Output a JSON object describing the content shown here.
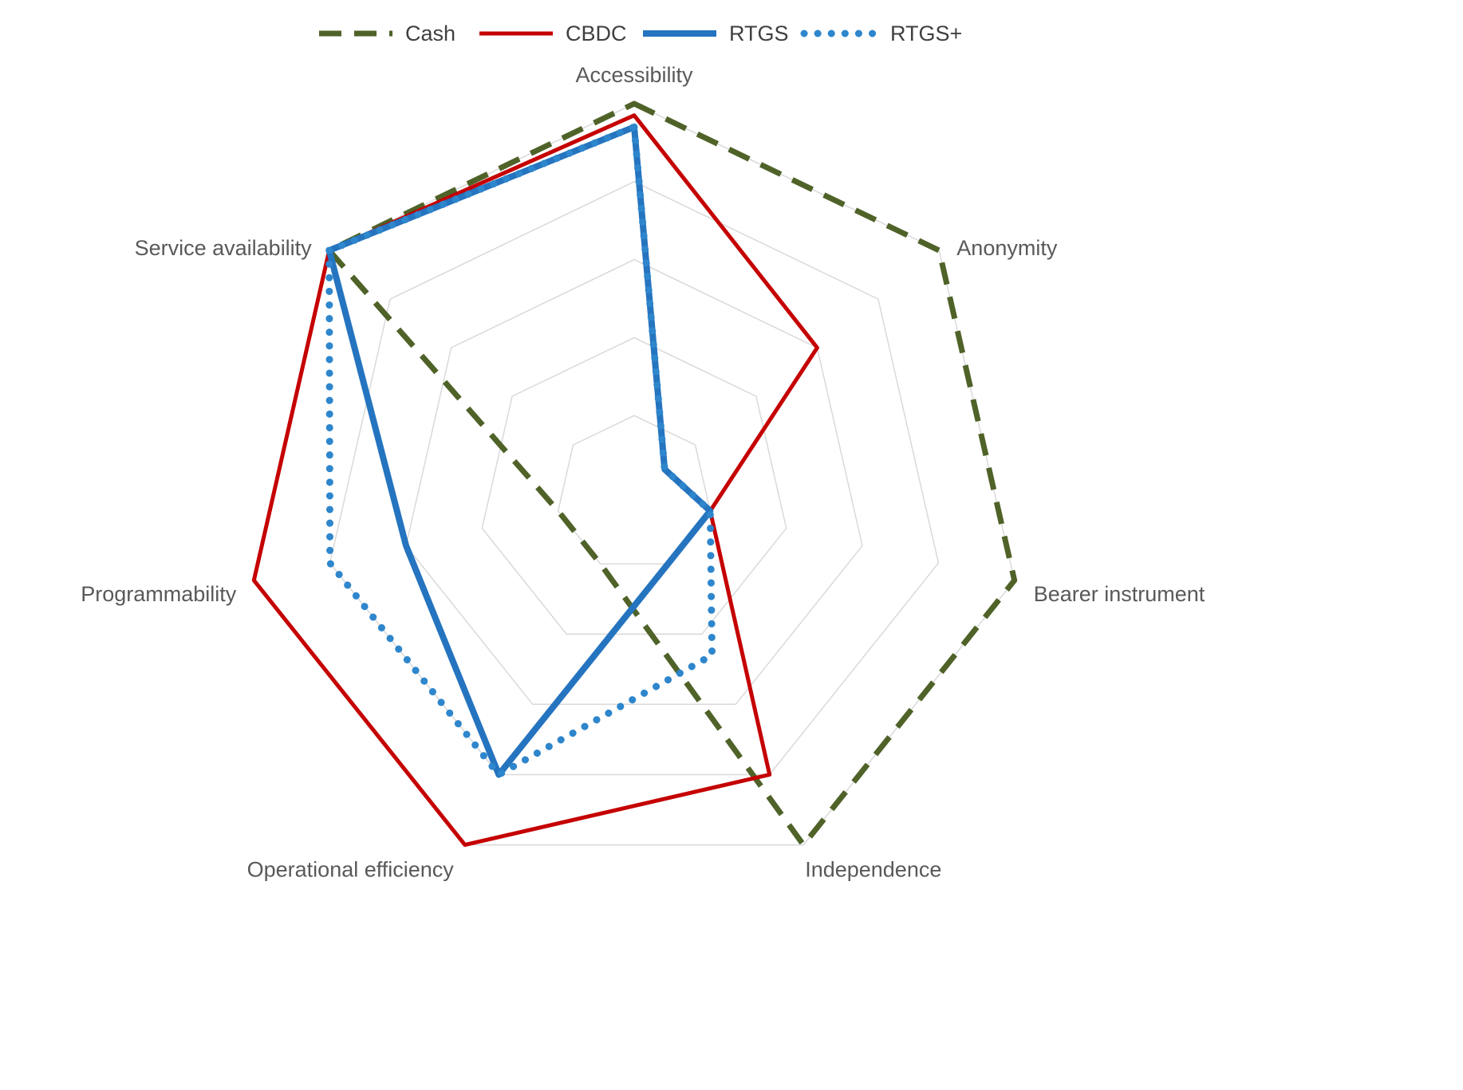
{
  "chart_data": {
    "type": "radar",
    "title": "",
    "axes": [
      "Accessibility",
      "Anonymity",
      "Bearer instrument",
      "Independence",
      "Operational efficiency",
      "Programmability",
      "Service availability"
    ],
    "scale": {
      "min": 0,
      "max": 5,
      "rings": 5,
      "grid": true
    },
    "grid_color": "#d9d9d9",
    "axis_label_color": "#595959",
    "legend_label_color": "#404040",
    "legend_position": "top",
    "series": [
      {
        "name": "Cash",
        "color": "#4f6228",
        "line_style": "dashed",
        "values": [
          5,
          5,
          5,
          5,
          1,
          1,
          5
        ]
      },
      {
        "name": "CBDC",
        "color": "#c50000",
        "line_style": "solid",
        "values": [
          4.85,
          3,
          1,
          4,
          5,
          5,
          5
        ]
      },
      {
        "name": "RTGS",
        "color": "#2574bf",
        "line_style": "solid-thick",
        "values": [
          4.7,
          0.5,
          1,
          1,
          4,
          3,
          5
        ]
      },
      {
        "name": "RTGS+",
        "color": "#2e86cc",
        "line_style": "dotted",
        "values": [
          4.7,
          0.5,
          1,
          2.3,
          4,
          4,
          5
        ]
      }
    ]
  }
}
